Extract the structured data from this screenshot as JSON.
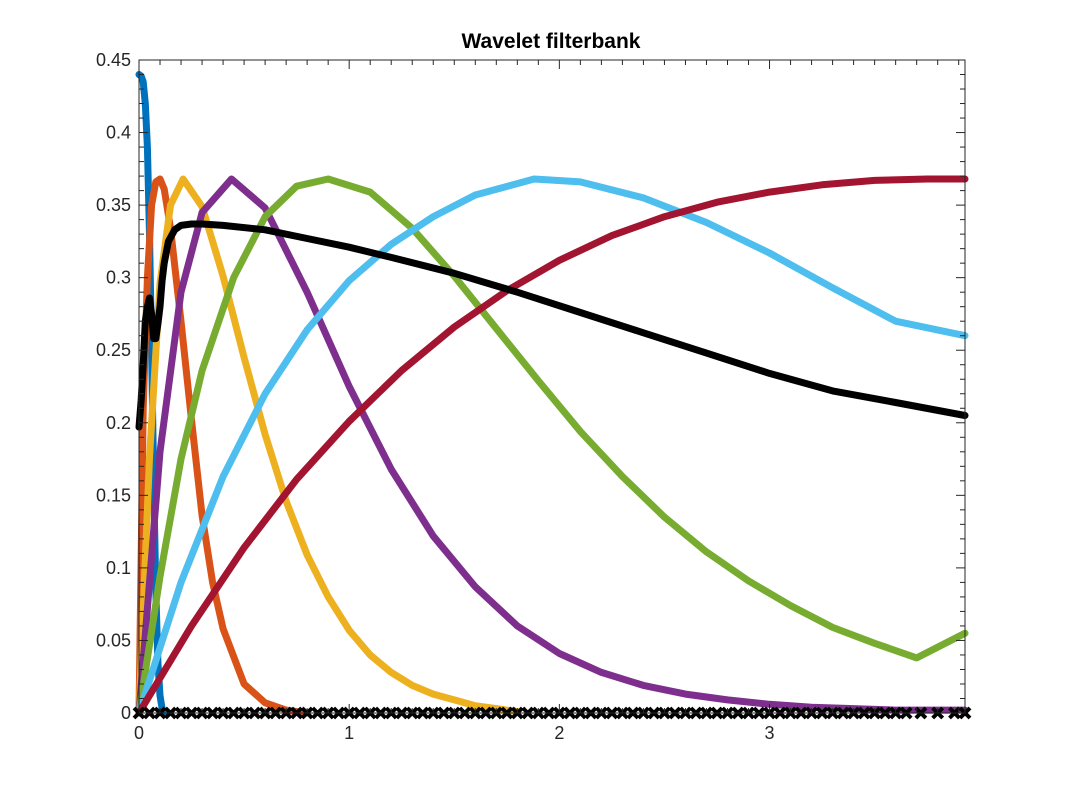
{
  "chart_data": {
    "type": "line",
    "title": "Wavelet filterbank",
    "xlabel": "",
    "ylabel": "",
    "xlim": [
      0,
      3.93
    ],
    "ylim": [
      0,
      0.45
    ],
    "x_ticks": [
      0,
      1,
      2,
      3
    ],
    "y_ticks": [
      0,
      0.05,
      0.1,
      0.15,
      0.2,
      0.25,
      0.3,
      0.35,
      0.4,
      0.45
    ],
    "x_tick_labels": [
      "0",
      "1",
      "2",
      "3"
    ],
    "y_tick_labels": [
      "0",
      "0.05",
      "0.1",
      "0.15",
      "0.2",
      "0.25",
      "0.3",
      "0.35",
      "0.4",
      "0.45"
    ],
    "grid": false,
    "legend": "none",
    "box": true,
    "series": [
      {
        "color": "#0072BD",
        "x": [
          0.0,
          0.01,
          0.02,
          0.03,
          0.04,
          0.05,
          0.06,
          0.07,
          0.08,
          0.09,
          0.1,
          0.11,
          0.12
        ],
        "y": [
          0.44,
          0.439,
          0.435,
          0.42,
          0.39,
          0.33,
          0.25,
          0.16,
          0.085,
          0.035,
          0.012,
          0.003,
          0.0
        ]
      },
      {
        "color": "#D95319",
        "x": [
          0.0,
          0.02,
          0.04,
          0.06,
          0.08,
          0.1,
          0.12,
          0.15,
          0.2,
          0.25,
          0.3,
          0.35,
          0.4,
          0.5,
          0.6,
          0.7,
          0.8
        ],
        "y": [
          0.0,
          0.21,
          0.3,
          0.35,
          0.366,
          0.368,
          0.361,
          0.334,
          0.27,
          0.202,
          0.136,
          0.09,
          0.058,
          0.02,
          0.007,
          0.002,
          0.0
        ]
      },
      {
        "color": "#EDB120",
        "x": [
          0.0,
          0.05,
          0.1,
          0.15,
          0.21,
          0.3,
          0.4,
          0.5,
          0.6,
          0.7,
          0.8,
          0.9,
          1.0,
          1.1,
          1.2,
          1.3,
          1.4,
          1.5,
          1.6,
          1.7,
          1.8
        ],
        "y": [
          0.0,
          0.176,
          0.296,
          0.35,
          0.368,
          0.349,
          0.301,
          0.245,
          0.192,
          0.146,
          0.109,
          0.08,
          0.057,
          0.04,
          0.028,
          0.019,
          0.013,
          0.009,
          0.005,
          0.003,
          0.001
        ]
      },
      {
        "color": "#7E2F8E",
        "x": [
          0.0,
          0.1,
          0.2,
          0.3,
          0.44,
          0.6,
          0.8,
          1.0,
          1.2,
          1.4,
          1.6,
          1.8,
          2.0,
          2.2,
          2.4,
          2.6,
          2.8,
          3.0,
          3.2,
          3.4,
          3.6,
          3.8,
          3.93
        ],
        "y": [
          0.0,
          0.18,
          0.29,
          0.345,
          0.368,
          0.348,
          0.29,
          0.225,
          0.168,
          0.122,
          0.087,
          0.06,
          0.041,
          0.028,
          0.019,
          0.013,
          0.009,
          0.006,
          0.004,
          0.003,
          0.002,
          0.002,
          0.002
        ]
      },
      {
        "color": "#77AC30",
        "x": [
          0.0,
          0.1,
          0.2,
          0.3,
          0.45,
          0.6,
          0.75,
          0.9,
          1.1,
          1.3,
          1.5,
          1.7,
          1.9,
          2.1,
          2.3,
          2.5,
          2.7,
          2.9,
          3.1,
          3.3,
          3.5,
          3.7,
          3.93
        ],
        "y": [
          0.0,
          0.094,
          0.175,
          0.236,
          0.3,
          0.342,
          0.363,
          0.368,
          0.359,
          0.334,
          0.301,
          0.265,
          0.229,
          0.194,
          0.163,
          0.135,
          0.111,
          0.091,
          0.074,
          0.059,
          0.048,
          0.038,
          0.055
        ]
      },
      {
        "color": "#4DBEEE",
        "x": [
          0.0,
          0.2,
          0.4,
          0.6,
          0.8,
          1.0,
          1.2,
          1.4,
          1.6,
          1.88,
          2.1,
          2.4,
          2.7,
          3.0,
          3.3,
          3.6,
          3.93
        ],
        "y": [
          0.0,
          0.09,
          0.163,
          0.22,
          0.264,
          0.298,
          0.323,
          0.342,
          0.357,
          0.368,
          0.366,
          0.355,
          0.338,
          0.317,
          0.293,
          0.27,
          0.26
        ]
      },
      {
        "color": "#A2142F",
        "x": [
          0.0,
          0.25,
          0.5,
          0.75,
          1.0,
          1.25,
          1.5,
          1.75,
          2.0,
          2.25,
          2.5,
          2.75,
          3.0,
          3.25,
          3.5,
          3.75,
          3.93
        ],
        "y": [
          0.0,
          0.06,
          0.114,
          0.161,
          0.201,
          0.236,
          0.266,
          0.291,
          0.312,
          0.329,
          0.342,
          0.352,
          0.359,
          0.364,
          0.367,
          0.368,
          0.368
        ]
      },
      {
        "color": "#000000",
        "x": [
          0.0,
          0.01,
          0.02,
          0.03,
          0.04,
          0.05,
          0.06,
          0.07,
          0.08,
          0.09,
          0.1,
          0.11,
          0.12,
          0.14,
          0.17,
          0.2,
          0.25,
          0.3,
          0.4,
          0.6,
          0.8,
          1.0,
          1.2,
          1.5,
          1.8,
          2.1,
          2.4,
          2.7,
          3.0,
          3.3,
          3.6,
          3.93
        ],
        "y": [
          0.197,
          0.215,
          0.24,
          0.27,
          0.28,
          0.286,
          0.275,
          0.258,
          0.258,
          0.268,
          0.28,
          0.298,
          0.31,
          0.325,
          0.333,
          0.336,
          0.337,
          0.337,
          0.336,
          0.333,
          0.327,
          0.321,
          0.314,
          0.303,
          0.29,
          0.276,
          0.262,
          0.248,
          0.234,
          0.222,
          0.214,
          0.205
        ]
      }
    ],
    "markers": {
      "symbol": "x",
      "color": "#000000",
      "y": 0,
      "x": [
        0.0,
        0.05,
        0.1,
        0.15,
        0.2,
        0.25,
        0.3,
        0.35,
        0.4,
        0.45,
        0.5,
        0.55,
        0.6,
        0.65,
        0.7,
        0.75,
        0.8,
        0.85,
        0.9,
        0.95,
        1.0,
        1.05,
        1.1,
        1.15,
        1.2,
        1.25,
        1.3,
        1.35,
        1.4,
        1.45,
        1.5,
        1.55,
        1.6,
        1.65,
        1.7,
        1.75,
        1.8,
        1.85,
        1.9,
        1.95,
        2.0,
        2.05,
        2.1,
        2.15,
        2.2,
        2.25,
        2.3,
        2.35,
        2.4,
        2.45,
        2.5,
        2.55,
        2.6,
        2.65,
        2.7,
        2.75,
        2.8,
        2.85,
        2.9,
        2.95,
        3.0,
        3.05,
        3.1,
        3.15,
        3.2,
        3.25,
        3.3,
        3.35,
        3.4,
        3.45,
        3.5,
        3.55,
        3.6,
        3.65,
        3.72,
        3.8,
        3.88,
        3.93
      ]
    }
  }
}
